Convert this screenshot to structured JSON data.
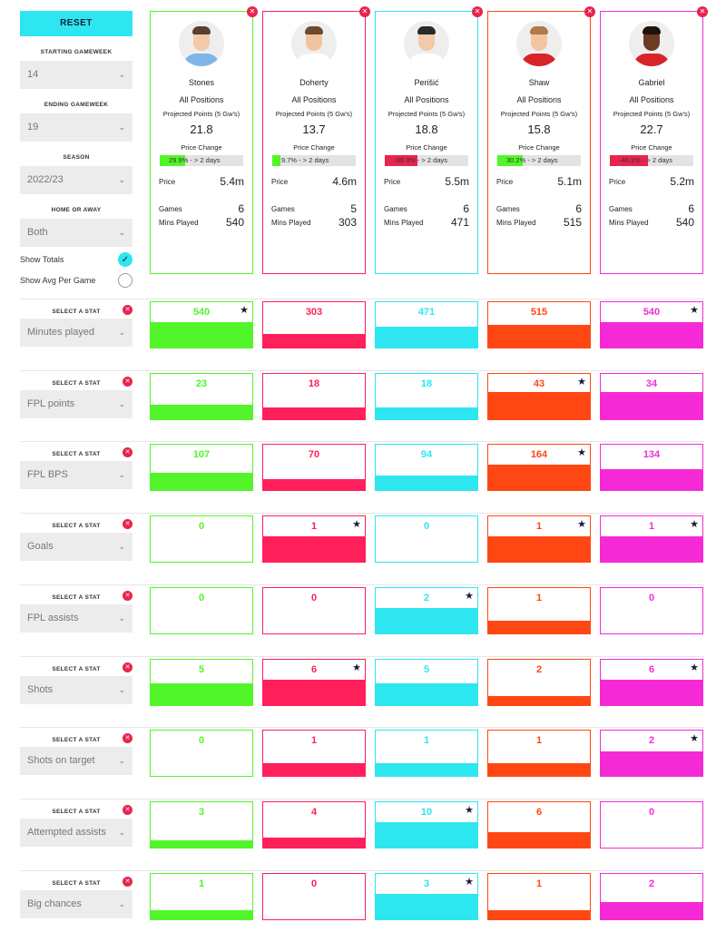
{
  "controls": {
    "reset_label": "RESET",
    "starting_gameweek": {
      "label": "STARTING GAMEWEEK",
      "value": "14"
    },
    "ending_gameweek": {
      "label": "ENDING GAMEWEEK",
      "value": "19"
    },
    "season": {
      "label": "SEASON",
      "value": "2022/23"
    },
    "home_away": {
      "label": "HOME OR AWAY",
      "value": "Both"
    },
    "show_totals": {
      "label": "Show Totals",
      "checked": true
    },
    "show_avg": {
      "label": "Show Avg Per Game",
      "checked": false
    },
    "chevron_icon": "chevron-down-icon",
    "select_stat_label": "SELECT A STAT"
  },
  "labels": {
    "projected": "Projected Points (5 Gw's)",
    "price_change": "Price Change",
    "price": "Price",
    "games": "Games",
    "mins": "Mins Played"
  },
  "colors": {
    "green": "#52f52a",
    "red": "#ff1f5a",
    "cyan": "#2de6f0",
    "orange": "#ff4713",
    "magenta": "#f52ad6",
    "remove": "#e8244f",
    "star": "#1a1a3a"
  },
  "players": [
    {
      "name": "Stones",
      "position": "All Positions",
      "projected": "21.8",
      "price_change_text": "29.9% - > 2 days",
      "price_change_pct": 29.9,
      "price": "5.4m",
      "games": "6",
      "mins": "540",
      "color": "#52f52a",
      "bar_color": "#52f52a",
      "skin": "#f3c9a8",
      "hair": "#5a3f2e",
      "shirt": "#7fb6e8"
    },
    {
      "name": "Doherty",
      "position": "All Positions",
      "projected": "13.7",
      "price_change_text": "9.7% - > 2 days",
      "price_change_pct": 9.7,
      "price": "4.6m",
      "games": "5",
      "mins": "303",
      "color": "#ff1f5a",
      "bar_color": "#52f52a",
      "skin": "#f0c3a0",
      "hair": "#6b4a30",
      "shirt": "#ffffff"
    },
    {
      "name": "Perišić",
      "position": "All Positions",
      "projected": "18.8",
      "price_change_text": "-39.3% - > 2 days",
      "price_change_pct": -39.3,
      "price": "5.5m",
      "games": "6",
      "mins": "471",
      "color": "#2de6f0",
      "bar_color": "#e8244f",
      "skin": "#f3c9a8",
      "hair": "#2a2a2a",
      "shirt": "#ffffff"
    },
    {
      "name": "Shaw",
      "position": "All Positions",
      "projected": "15.8",
      "price_change_text": "30.2% - > 2 days",
      "price_change_pct": 30.2,
      "price": "5.1m",
      "games": "6",
      "mins": "515",
      "color": "#ff4713",
      "bar_color": "#52f52a",
      "skin": "#f3c4a0",
      "hair": "#b07a4a",
      "shirt": "#d8232a"
    },
    {
      "name": "Gabriel",
      "position": "All Positions",
      "projected": "22.7",
      "price_change_text": "-46.1% - > 2 days",
      "price_change_pct": -46.1,
      "price": "5.2m",
      "games": "6",
      "mins": "540",
      "color": "#f52ad6",
      "bar_color": "#e8244f",
      "skin": "#6b3b22",
      "hair": "#1e120c",
      "shirt": "#d8232a"
    }
  ],
  "stats": [
    {
      "name": "Minutes played",
      "values": [
        "540",
        "303",
        "471",
        "515",
        "540"
      ],
      "fill": [
        0.55,
        0.3,
        0.46,
        0.5,
        0.55
      ],
      "best": [
        true,
        false,
        false,
        false,
        true
      ]
    },
    {
      "name": "FPL points",
      "values": [
        "23",
        "18",
        "18",
        "43",
        "34"
      ],
      "fill": [
        0.32,
        0.25,
        0.25,
        0.6,
        0.6
      ],
      "best": [
        false,
        false,
        false,
        true,
        false
      ]
    },
    {
      "name": "FPL BPS",
      "values": [
        "107",
        "70",
        "94",
        "164",
        "134"
      ],
      "fill": [
        0.37,
        0.24,
        0.32,
        0.56,
        0.46
      ],
      "best": [
        false,
        false,
        false,
        true,
        false
      ]
    },
    {
      "name": "Goals",
      "values": [
        "0",
        "1",
        "0",
        "1",
        "1"
      ],
      "fill": [
        0,
        0.57,
        0,
        0.57,
        0.57
      ],
      "best": [
        false,
        true,
        false,
        true,
        true
      ]
    },
    {
      "name": "FPL assists",
      "values": [
        "0",
        "0",
        "2",
        "1",
        "0"
      ],
      "fill": [
        0,
        0,
        0.55,
        0.28,
        0
      ],
      "best": [
        false,
        false,
        true,
        false,
        false
      ]
    },
    {
      "name": "Shots",
      "values": [
        "5",
        "6",
        "5",
        "2",
        "6"
      ],
      "fill": [
        0.47,
        0.57,
        0.47,
        0.19,
        0.57
      ],
      "best": [
        false,
        true,
        false,
        false,
        true
      ]
    },
    {
      "name": "Shots on target",
      "values": [
        "0",
        "1",
        "1",
        "1",
        "2"
      ],
      "fill": [
        0,
        0.27,
        0.27,
        0.27,
        0.54
      ],
      "best": [
        false,
        false,
        false,
        false,
        true
      ]
    },
    {
      "name": "Attempted assists",
      "values": [
        "3",
        "4",
        "10",
        "6",
        "0"
      ],
      "fill": [
        0.16,
        0.22,
        0.56,
        0.33,
        0
      ],
      "best": [
        false,
        false,
        true,
        false,
        false
      ]
    },
    {
      "name": "Big chances",
      "values": [
        "1",
        "0",
        "3",
        "1",
        "2"
      ],
      "fill": [
        0.19,
        0,
        0.56,
        0.19,
        0.37
      ],
      "best": [
        false,
        false,
        true,
        false,
        false
      ]
    }
  ]
}
